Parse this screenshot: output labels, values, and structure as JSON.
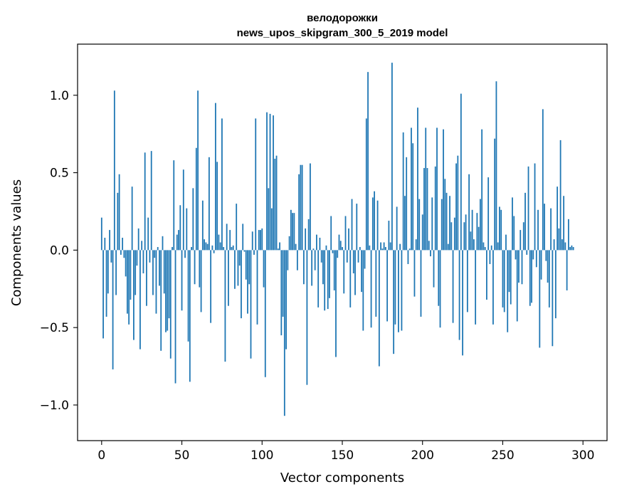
{
  "chart_data": {
    "type": "bar",
    "title_line1": "велодорожки",
    "title_line2": "news_upos_skipgram_300_5_2019 model",
    "xlabel": "Vector components",
    "ylabel": "Components values",
    "xlim": [
      -15,
      315
    ],
    "ylim": [
      -1.23,
      1.33
    ],
    "xticks": [
      0,
      50,
      100,
      150,
      200,
      250,
      300
    ],
    "yticks": [
      -1.0,
      -0.5,
      0.0,
      0.5,
      1.0
    ],
    "xtick_labels": [
      "0",
      "50",
      "100",
      "150",
      "200",
      "250",
      "300"
    ],
    "ytick_labels": [
      "−1.0",
      "−0.5",
      "0.0",
      "0.5",
      "1.0"
    ],
    "bar_color": "#1f77b4",
    "grid": false,
    "values": [
      0.21,
      -0.57,
      0.08,
      -0.43,
      -0.28,
      0.13,
      -0.08,
      -0.77,
      1.03,
      -0.29,
      0.37,
      0.49,
      -0.03,
      0.08,
      -0.05,
      -0.17,
      -0.41,
      -0.48,
      -0.32,
      0.41,
      -0.58,
      -0.29,
      -0.1,
      0.14,
      -0.64,
      0.06,
      -0.15,
      0.63,
      -0.36,
      0.21,
      -0.08,
      0.64,
      -0.29,
      -0.05,
      -0.41,
      0.02,
      -0.23,
      -0.65,
      0.09,
      -0.28,
      -0.53,
      -0.52,
      -0.44,
      -0.7,
      0.02,
      0.58,
      -0.86,
      0.1,
      0.13,
      0.29,
      -0.39,
      0.52,
      -0.05,
      0.27,
      -0.59,
      -0.85,
      0.02,
      0.4,
      -0.22,
      0.66,
      1.03,
      -0.24,
      -0.4,
      0.32,
      0.07,
      0.05,
      0.04,
      0.6,
      -0.47,
      0.03,
      -0.02,
      0.95,
      0.57,
      0.1,
      0.05,
      0.85,
      0.02,
      -0.72,
      0.17,
      -0.36,
      0.13,
      0.02,
      0.03,
      -0.25,
      0.3,
      -0.23,
      -0.1,
      -0.44,
      0.17,
      -0.01,
      -0.19,
      -0.41,
      -0.22,
      -0.7,
      0.12,
      -0.03,
      0.85,
      -0.48,
      0.13,
      0.13,
      0.14,
      -0.24,
      -0.82,
      0.89,
      0.4,
      0.88,
      0.27,
      0.87,
      0.59,
      0.61,
      0.01,
      0.05,
      -0.55,
      -0.43,
      -1.07,
      -0.64,
      -0.13,
      0.09,
      0.26,
      0.24,
      0.24,
      0.04,
      -0.13,
      0.49,
      0.55,
      0.55,
      -0.22,
      0.14,
      -0.87,
      0.2,
      0.56,
      -0.23,
      0.01,
      -0.13,
      0.1,
      -0.37,
      0.08,
      -0.08,
      -0.22,
      -0.39,
      0.03,
      -0.38,
      -0.31,
      0.22,
      -0.02,
      -0.26,
      -0.69,
      -0.05,
      0.1,
      0.06,
      0.02,
      -0.28,
      0.22,
      -0.08,
      0.14,
      -0.37,
      0.33,
      -0.15,
      -0.29,
      0.3,
      -0.08,
      0.02,
      -0.27,
      -0.52,
      -0.12,
      0.85,
      1.15,
      0.03,
      -0.5,
      0.34,
      0.38,
      -0.43,
      0.32,
      -0.75,
      0.05,
      0.01,
      0.05,
      0.02,
      -0.46,
      0.19,
      0.05,
      1.21,
      -0.67,
      -0.48,
      0.28,
      -0.53,
      0.04,
      -0.52,
      0.76,
      0.35,
      0.6,
      -0.09,
      0.01,
      0.79,
      0.69,
      -0.3,
      0.07,
      0.92,
      0.33,
      -0.43,
      0.23,
      0.53,
      0.79,
      0.53,
      0.06,
      -0.04,
      0.34,
      -0.24,
      0.54,
      0.79,
      -0.36,
      -0.5,
      0.33,
      0.78,
      0.46,
      0.37,
      0.04,
      0.35,
      0.18,
      -0.47,
      0.21,
      0.56,
      0.61,
      -0.58,
      1.01,
      -0.68,
      0.18,
      0.23,
      -0.4,
      0.49,
      0.12,
      0.26,
      0.07,
      -0.48,
      0.24,
      0.15,
      0.33,
      0.78,
      0.05,
      0.02,
      -0.32,
      0.47,
      -0.09,
      0.03,
      -0.48,
      0.72,
      1.09,
      0.05,
      0.28,
      0.26,
      -0.37,
      -0.4,
      0.1,
      -0.53,
      -0.27,
      -0.35,
      0.34,
      0.22,
      -0.06,
      -0.46,
      -0.21,
      0.13,
      -0.22,
      0.18,
      0.37,
      -0.03,
      0.54,
      -0.36,
      -0.34,
      -0.06,
      0.56,
      -0.11,
      0.26,
      -0.63,
      -0.19,
      0.91,
      0.3,
      -0.07,
      -0.21,
      -0.37,
      0.27,
      -0.62,
      0.07,
      -0.44,
      0.41,
      0.14,
      0.71,
      0.07,
      0.35,
      0.05,
      -0.26,
      0.2,
      0.02,
      0.03,
      0.02
    ]
  }
}
